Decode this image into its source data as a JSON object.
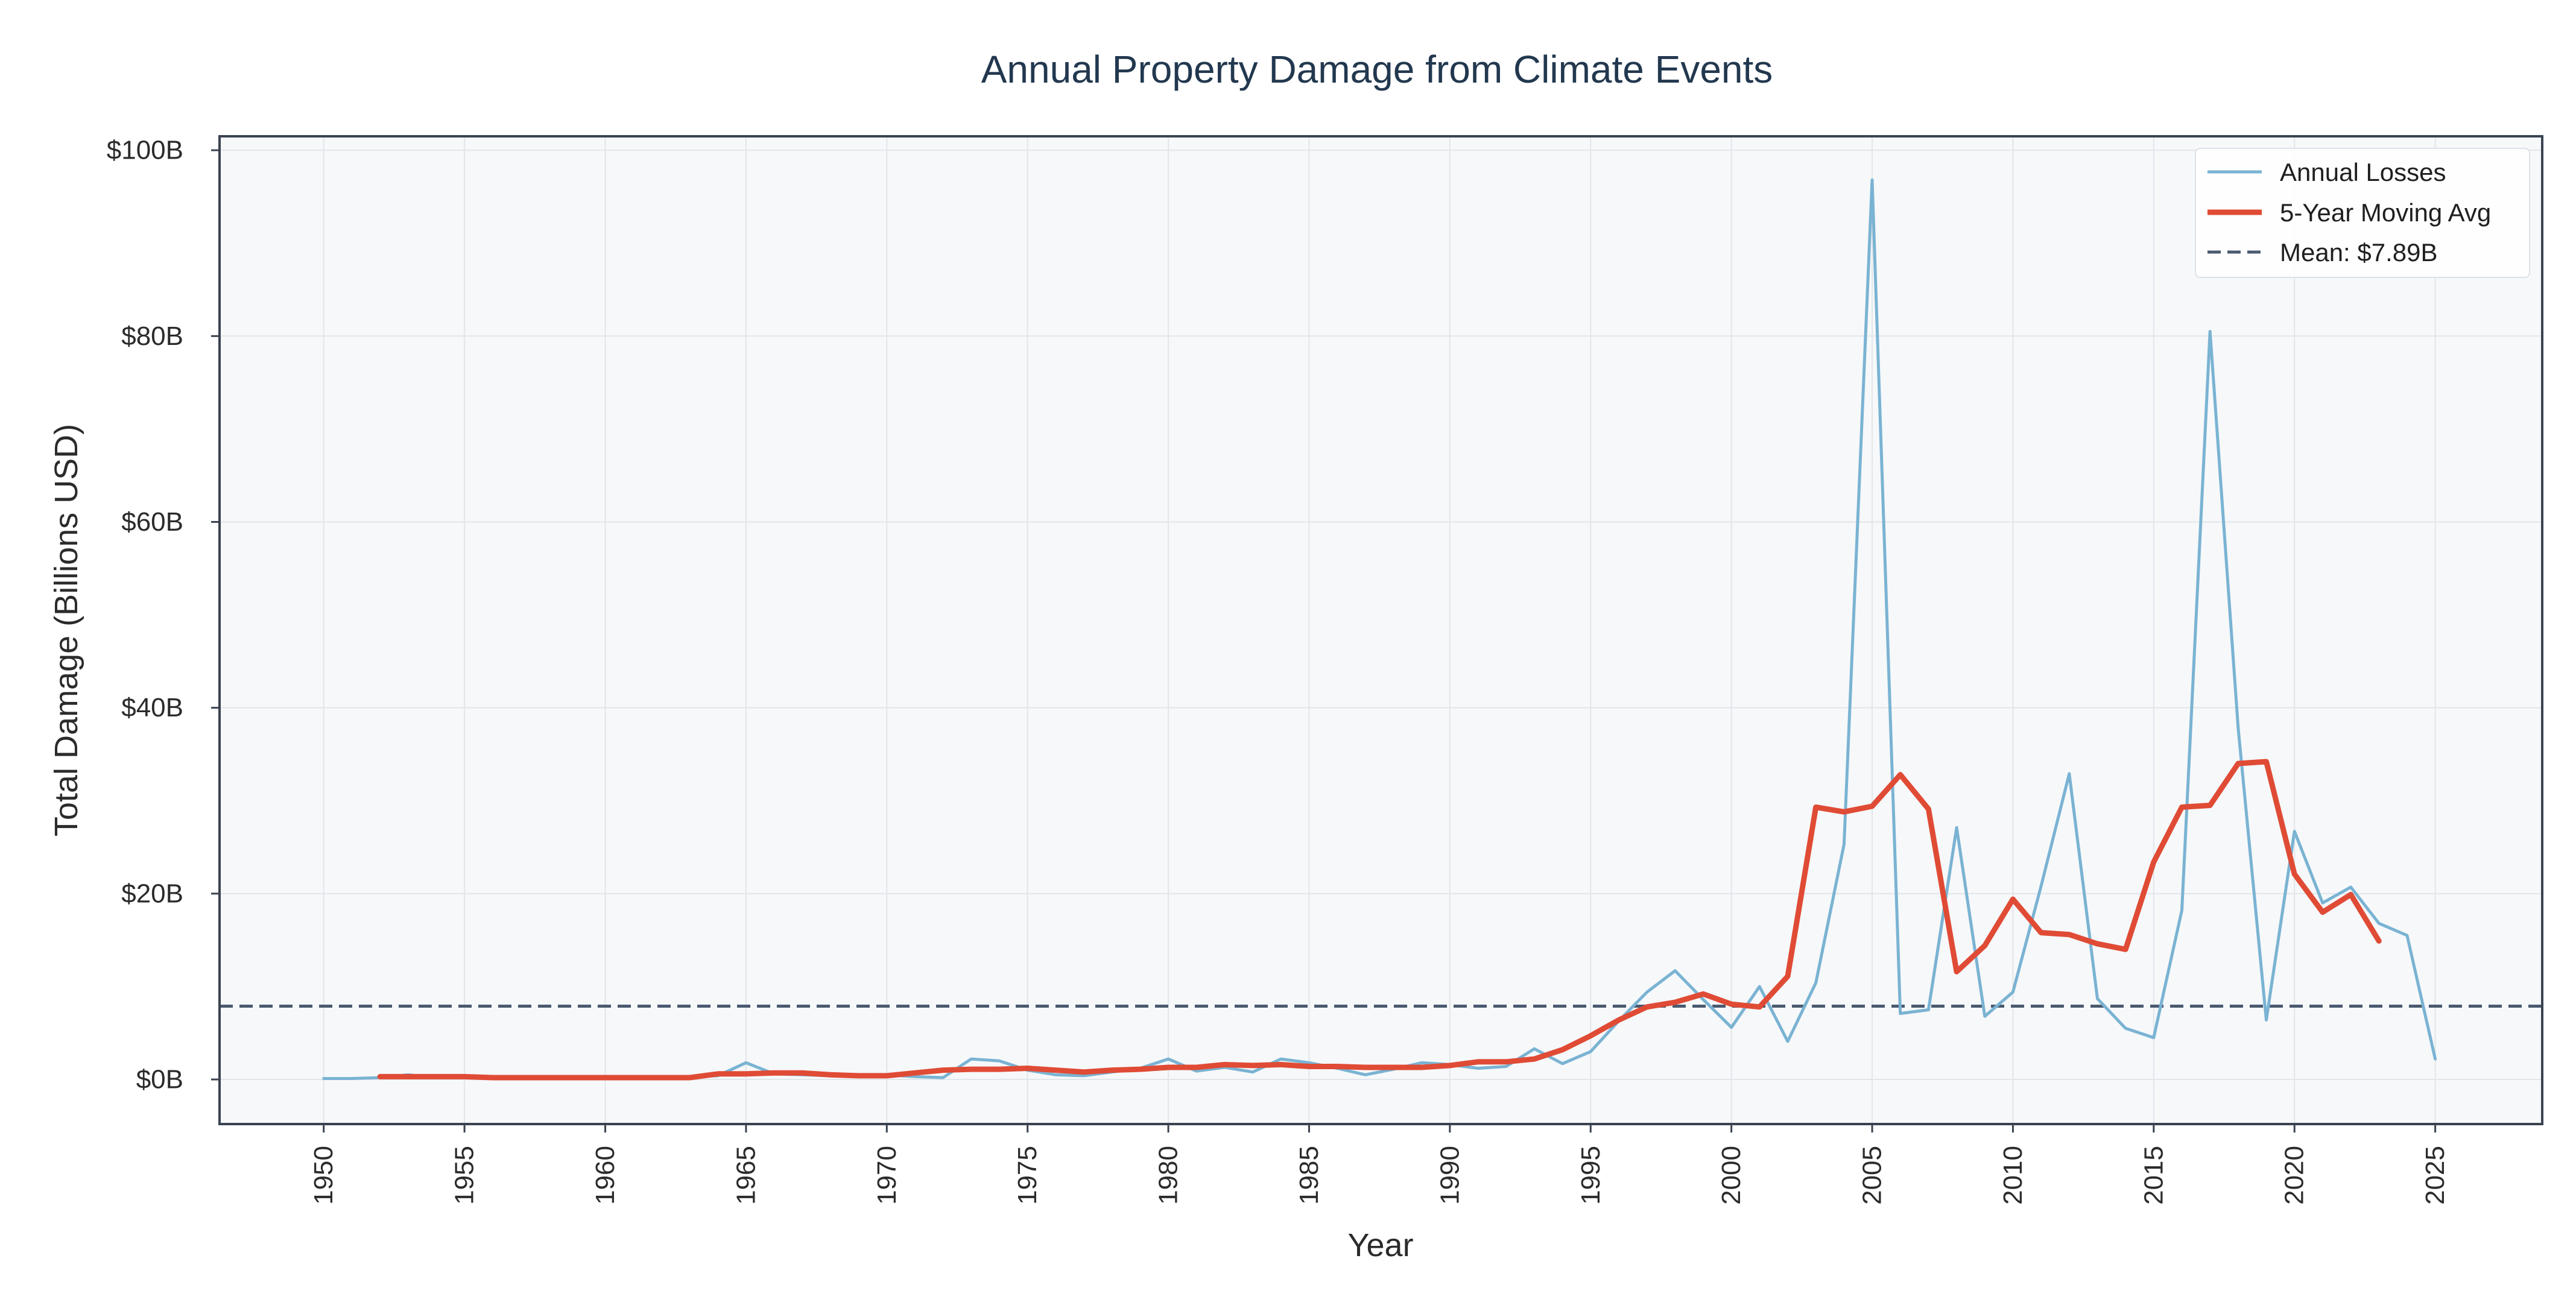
{
  "chart_data": {
    "type": "line",
    "title": "Annual Property Damage from Climate Events",
    "xlabel": "Year",
    "ylabel": "Total Damage (Billions USD)",
    "xlim": [
      1946.3,
      2028.8
    ],
    "ylim": [
      -4.8,
      101.5
    ],
    "x_ticks": [
      1950,
      1955,
      1960,
      1965,
      1970,
      1975,
      1980,
      1985,
      1990,
      1995,
      2000,
      2005,
      2010,
      2015,
      2020,
      2025
    ],
    "x_tick_labels": [
      "1950",
      "1955",
      "1960",
      "1965",
      "1970",
      "1975",
      "1980",
      "1985",
      "1990",
      "1995",
      "2000",
      "2005",
      "2010",
      "2015",
      "2020",
      "2025"
    ],
    "y_ticks": [
      0,
      20,
      40,
      60,
      80,
      100
    ],
    "y_tick_labels": [
      "$0B",
      "$20B",
      "$40B",
      "$60B",
      "$80B",
      "$100B"
    ],
    "grid": true,
    "legend_position": "top-right",
    "mean_value": 7.89,
    "series": [
      {
        "name": "Annual Losses",
        "color": "#7ab3d3",
        "style": "solid",
        "x": [
          1950,
          1951,
          1952,
          1953,
          1954,
          1955,
          1956,
          1957,
          1958,
          1959,
          1960,
          1961,
          1962,
          1963,
          1964,
          1965,
          1966,
          1967,
          1968,
          1969,
          1970,
          1971,
          1972,
          1973,
          1974,
          1975,
          1976,
          1977,
          1978,
          1979,
          1980,
          1981,
          1982,
          1983,
          1984,
          1985,
          1986,
          1987,
          1988,
          1989,
          1990,
          1991,
          1992,
          1993,
          1994,
          1995,
          1996,
          1997,
          1998,
          1999,
          2000,
          2001,
          2002,
          2003,
          2004,
          2005,
          2006,
          2007,
          2008,
          2009,
          2010,
          2011,
          2012,
          2013,
          2014,
          2015,
          2016,
          2017,
          2018,
          2019,
          2020,
          2021,
          2022,
          2023,
          2024,
          2025
        ],
        "values": [
          0.1,
          0.1,
          0.2,
          0.5,
          0.2,
          0.3,
          0.1,
          0.1,
          0.1,
          0.2,
          0.1,
          0.1,
          0.1,
          0.3,
          0.4,
          1.8,
          0.6,
          0.5,
          0.4,
          0.3,
          0.5,
          0.3,
          0.2,
          2.2,
          2.0,
          1.0,
          0.5,
          0.4,
          0.8,
          1.2,
          2.2,
          0.9,
          1.3,
          0.8,
          2.2,
          1.8,
          1.2,
          0.5,
          1.1,
          1.8,
          1.6,
          1.2,
          1.4,
          3.3,
          1.7,
          3.0,
          6.3,
          9.4,
          11.7,
          8.6,
          5.6,
          10.0,
          4.1,
          10.4,
          25.3,
          96.8,
          7.1,
          7.5,
          27.1,
          6.8,
          9.4,
          20.8,
          32.9,
          8.7,
          5.5,
          4.5,
          18.2,
          80.5,
          37.8,
          6.4,
          26.7,
          19.0,
          20.7,
          16.8,
          15.5,
          2.2
        ]
      },
      {
        "name": "5-Year Moving Avg",
        "color": "#e04b35",
        "style": "solid",
        "x": [
          1952,
          1953,
          1954,
          1955,
          1956,
          1957,
          1958,
          1959,
          1960,
          1961,
          1962,
          1963,
          1964,
          1965,
          1966,
          1967,
          1968,
          1969,
          1970,
          1971,
          1972,
          1973,
          1974,
          1975,
          1976,
          1977,
          1978,
          1979,
          1980,
          1981,
          1982,
          1983,
          1984,
          1985,
          1986,
          1987,
          1988,
          1989,
          1990,
          1991,
          1992,
          1993,
          1994,
          1995,
          1996,
          1997,
          1998,
          1999,
          2000,
          2001,
          2002,
          2003,
          2004,
          2005,
          2006,
          2007,
          2008,
          2009,
          2010,
          2011,
          2012,
          2013,
          2014,
          2015,
          2016,
          2017,
          2018,
          2019,
          2020,
          2021,
          2022,
          2023
        ],
        "values": [
          0.3,
          0.3,
          0.3,
          0.3,
          0.2,
          0.2,
          0.2,
          0.2,
          0.2,
          0.2,
          0.2,
          0.2,
          0.6,
          0.6,
          0.7,
          0.7,
          0.5,
          0.4,
          0.4,
          0.7,
          1.0,
          1.1,
          1.1,
          1.2,
          1.0,
          0.8,
          1.0,
          1.1,
          1.3,
          1.3,
          1.6,
          1.5,
          1.6,
          1.4,
          1.4,
          1.3,
          1.3,
          1.3,
          1.5,
          1.9,
          1.9,
          2.2,
          3.2,
          4.7,
          6.4,
          7.8,
          8.3,
          9.2,
          8.1,
          7.8,
          11.1,
          29.3,
          28.8,
          29.4,
          32.8,
          29.1,
          11.6,
          14.4,
          19.4,
          15.8,
          15.6,
          14.6,
          14.0,
          23.4,
          29.3,
          29.5,
          34.0,
          34.2,
          22.1,
          18.0,
          19.9,
          14.9
        ]
      }
    ],
    "reference_lines": [
      {
        "name": "Mean: $7.89B",
        "value": 7.89,
        "color": "#4a5a70",
        "style": "dashed"
      }
    ]
  }
}
